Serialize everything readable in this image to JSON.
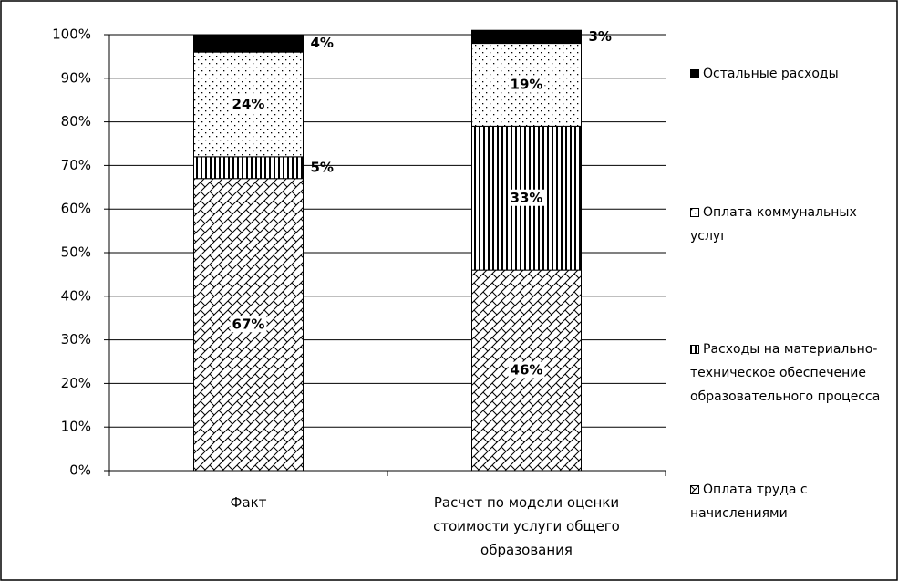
{
  "chart_data": {
    "type": "stacked_bar",
    "categories": [
      "Факт",
      "Расчет по модели оценки стоимости услуги общего образования"
    ],
    "series": [
      {
        "name": "Оплата труда с начислениями",
        "color": "#000000",
        "pattern": "bricks",
        "values": [
          67,
          46
        ],
        "value_labels": [
          "67%",
          "46%"
        ]
      },
      {
        "name": "Расходы на материально-техническое обеспечение образовательного процесса",
        "color": "#000000",
        "pattern": "vertical",
        "values": [
          5,
          33
        ],
        "value_labels": [
          "5%",
          "33%"
        ]
      },
      {
        "name": "Оплата коммунальных услуг",
        "color": "#000000",
        "pattern": "dots",
        "values": [
          24,
          19
        ],
        "value_labels": [
          "24%",
          "19%"
        ]
      },
      {
        "name": "Остальные расходы",
        "color": "#000000",
        "pattern": "solid",
        "values": [
          4,
          3
        ],
        "value_labels": [
          "4%",
          "3%"
        ]
      }
    ],
    "ylim": [
      0,
      100
    ],
    "yticks": [
      {
        "value": 0,
        "label": "0%"
      },
      {
        "value": 10,
        "label": "10%"
      },
      {
        "value": 20,
        "label": "20%"
      },
      {
        "value": 30,
        "label": "30%"
      },
      {
        "value": 40,
        "label": "40%"
      },
      {
        "value": 50,
        "label": "50%"
      },
      {
        "value": 60,
        "label": "60%"
      },
      {
        "value": 70,
        "label": "70%"
      },
      {
        "value": 80,
        "label": "80%"
      },
      {
        "value": 90,
        "label": "90%"
      },
      {
        "value": 100,
        "label": "100%"
      }
    ],
    "grid": true,
    "legend": "right"
  }
}
